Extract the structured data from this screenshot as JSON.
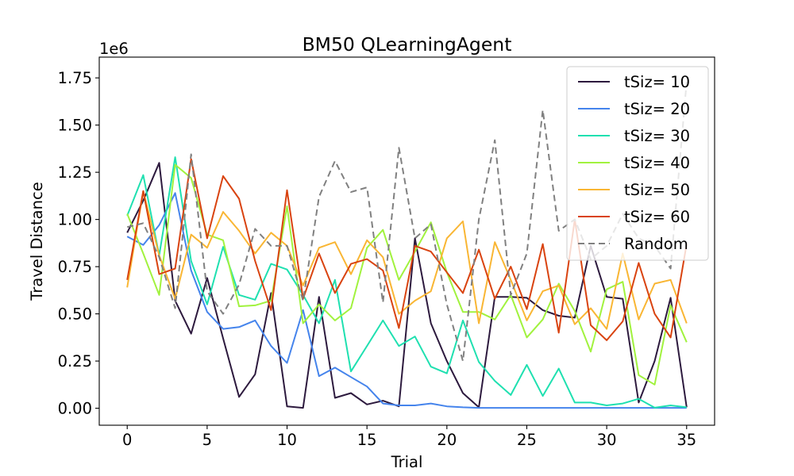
{
  "chart_data": {
    "type": "line",
    "title": "BM50  QLearningAgent",
    "xlabel": "Trial",
    "ylabel": "Travel Distance",
    "y_offset_label": "1e6",
    "xlim": [
      -1.75,
      36.75
    ],
    "ylim": [
      -90000,
      1860000
    ],
    "xticks": [
      0,
      5,
      10,
      15,
      20,
      25,
      30,
      35
    ],
    "yticks": [
      0,
      250000,
      500000,
      750000,
      1000000,
      1250000,
      1500000,
      1750000
    ],
    "ytick_labels": [
      "0.00",
      "0.25",
      "0.50",
      "0.75",
      "1.00",
      "1.25",
      "1.50",
      "1.75"
    ],
    "grid": false,
    "legend_position": "top-right",
    "x": [
      0,
      1,
      2,
      3,
      4,
      5,
      6,
      7,
      8,
      9,
      10,
      11,
      12,
      13,
      14,
      15,
      16,
      17,
      18,
      19,
      20,
      21,
      22,
      23,
      24,
      25,
      26,
      27,
      28,
      29,
      30,
      31,
      32,
      33,
      34,
      35
    ],
    "series": [
      {
        "name": "tSiz= 10",
        "color": "#2d1a3e",
        "dash": "",
        "values": [
          930000,
          1100000,
          1300000,
          570000,
          395000,
          690000,
          370000,
          60000,
          180000,
          610000,
          10000,
          2000,
          590000,
          55000,
          80000,
          20000,
          40000,
          10000,
          900000,
          450000,
          250000,
          80000,
          5000,
          590000,
          590000,
          585000,
          520000,
          490000,
          480000,
          860000,
          590000,
          580000,
          30000,
          250000,
          585000,
          5000
        ]
      },
      {
        "name": "tSiz= 20",
        "color": "#4584ec",
        "dash": "",
        "values": [
          910000,
          865000,
          970000,
          1140000,
          730000,
          510000,
          420000,
          430000,
          465000,
          330000,
          240000,
          520000,
          170000,
          215000,
          165000,
          115000,
          25000,
          15000,
          15000,
          25000,
          10000,
          5000,
          2000,
          2000,
          2000,
          2000,
          2000,
          2000,
          2000,
          2000,
          2000,
          2000,
          2000,
          2000,
          2000,
          2000
        ]
      },
      {
        "name": "tSiz= 30",
        "color": "#1fe0b0",
        "dash": "",
        "values": [
          1020000,
          1235000,
          810000,
          1330000,
          780000,
          550000,
          855000,
          600000,
          575000,
          765000,
          735000,
          600000,
          450000,
          680000,
          195000,
          330000,
          465000,
          330000,
          380000,
          220000,
          185000,
          465000,
          245000,
          145000,
          70000,
          230000,
          65000,
          210000,
          30000,
          30000,
          15000,
          25000,
          50000,
          3000,
          15000,
          5000
        ]
      },
      {
        "name": "tSiz= 40",
        "color": "#a1f23e",
        "dash": "",
        "values": [
          1030000,
          820000,
          600000,
          1290000,
          1220000,
          920000,
          890000,
          540000,
          545000,
          570000,
          1070000,
          450000,
          550000,
          465000,
          530000,
          850000,
          945000,
          680000,
          830000,
          985000,
          720000,
          510000,
          510000,
          470000,
          600000,
          375000,
          470000,
          660000,
          515000,
          300000,
          630000,
          670000,
          175000,
          125000,
          545000,
          350000
        ]
      },
      {
        "name": "tSiz= 50",
        "color": "#f9b634",
        "dash": "",
        "values": [
          640000,
          1150000,
          810000,
          580000,
          920000,
          850000,
          1040000,
          940000,
          820000,
          930000,
          860000,
          650000,
          850000,
          880000,
          710000,
          890000,
          800000,
          500000,
          570000,
          620000,
          900000,
          990000,
          450000,
          880000,
          680000,
          465000,
          620000,
          650000,
          445000,
          530000,
          420000,
          820000,
          470000,
          660000,
          680000,
          450000
        ]
      },
      {
        "name": "tSiz= 60",
        "color": "#d94310",
        "dash": "",
        "values": [
          680000,
          1150000,
          710000,
          740000,
          1320000,
          900000,
          1230000,
          1110000,
          780000,
          520000,
          1155000,
          580000,
          820000,
          610000,
          765000,
          790000,
          730000,
          425000,
          860000,
          830000,
          720000,
          610000,
          840000,
          580000,
          750000,
          525000,
          870000,
          400000,
          1000000,
          440000,
          360000,
          460000,
          770000,
          500000,
          375000,
          870000
        ]
      },
      {
        "name": "Random",
        "color": "#808080",
        "dash": "8,5",
        "values": [
          960000,
          980000,
          800000,
          530000,
          1345000,
          620000,
          500000,
          655000,
          950000,
          860000,
          860000,
          570000,
          1120000,
          1310000,
          1145000,
          1170000,
          560000,
          1380000,
          900000,
          975000,
          550000,
          250000,
          1000000,
          1420000,
          600000,
          820000,
          1580000,
          940000,
          1000000,
          790000,
          860000,
          1030000,
          900000,
          860000,
          740000,
          1730000
        ]
      }
    ]
  }
}
